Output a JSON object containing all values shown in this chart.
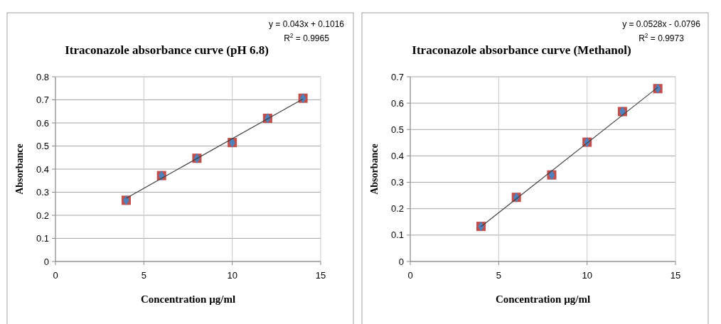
{
  "chart_data": [
    {
      "type": "scatter",
      "title": "Itraconazole absorbance curve (pH 6.8)",
      "xlabel": "Concentration µg/ml",
      "ylabel": "Absorbance",
      "xlim": [
        0,
        15
      ],
      "xticks": [
        0,
        5,
        10,
        15
      ],
      "ylim": [
        0,
        0.8
      ],
      "yticks": [
        0,
        0.1,
        0.2,
        0.3,
        0.4,
        0.5,
        0.6,
        0.7,
        0.8
      ],
      "grid": true,
      "annotations": [
        "y = 0.043x + 0.1016",
        "R$^{2}$ = 0.9965"
      ],
      "series": [
        {
          "type": "scatter",
          "marker": "square",
          "color": "#c0504d",
          "x": [
            4,
            6,
            8,
            10,
            12,
            14
          ],
          "values": [
            0.265,
            0.372,
            0.447,
            0.515,
            0.62,
            0.707
          ]
        },
        {
          "type": "scatter",
          "marker": "diamond",
          "color": "#4f81bd",
          "x": [
            4,
            6,
            8,
            10,
            12,
            14
          ],
          "values": [
            0.265,
            0.372,
            0.447,
            0.515,
            0.62,
            0.707
          ]
        },
        {
          "type": "line",
          "marker": "none",
          "color": "#404040",
          "x": [
            4,
            14
          ],
          "values": [
            0.274,
            0.704
          ]
        }
      ]
    },
    {
      "type": "scatter",
      "title": "Itraconazole absorbance curve (Methanol)",
      "xlabel": "Concentration µg/ml",
      "ylabel": "Absorbance",
      "xlim": [
        0,
        15
      ],
      "xticks": [
        0,
        5,
        10,
        15
      ],
      "ylim": [
        0,
        0.7
      ],
      "yticks": [
        0,
        0.1,
        0.2,
        0.3,
        0.4,
        0.5,
        0.6,
        0.7
      ],
      "grid": true,
      "annotations": [
        "y = 0.0528x - 0.0796",
        "R$^{2}$ = 0.9973"
      ],
      "series": [
        {
          "type": "scatter",
          "marker": "square",
          "color": "#c0504d",
          "x": [
            4,
            6,
            8,
            10,
            12,
            14
          ],
          "values": [
            0.133,
            0.243,
            0.328,
            0.452,
            0.568,
            0.655
          ]
        },
        {
          "type": "scatter",
          "marker": "diamond",
          "color": "#4f81bd",
          "x": [
            4,
            6,
            8,
            10,
            12,
            14
          ],
          "values": [
            0.133,
            0.243,
            0.328,
            0.452,
            0.568,
            0.655
          ]
        },
        {
          "type": "line",
          "marker": "none",
          "color": "#404040",
          "x": [
            4,
            14
          ],
          "values": [
            0.132,
            0.66
          ]
        }
      ]
    }
  ]
}
